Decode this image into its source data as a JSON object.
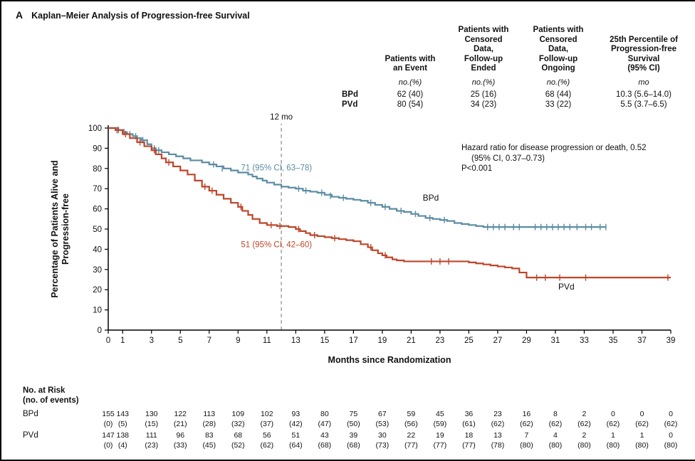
{
  "panel_label": "A",
  "title": "Kaplan–Meier Analysis of Progression-free Survival",
  "summary_table": {
    "col_headers": [
      "Patients with\nan Event",
      "Patients with\nCensored\nData,\nFollow-up\nEnded",
      "Patients with\nCensored\nData,\nFollow-up\nOngoing",
      "25th Percentile of\nProgression-free\nSurvival\n(95% CI)"
    ],
    "unit_row": [
      "no.(%)",
      "no.(%)",
      "no.(%)",
      "mo"
    ],
    "rows": [
      {
        "label": "BPd",
        "values": [
          "62 (40)",
          "25 (16)",
          "68 (44)",
          "10.3 (5.6–14.0)"
        ]
      },
      {
        "label": "PVd",
        "values": [
          "80 (54)",
          "34 (23)",
          "33 (22)",
          "5.5 (3.7–6.5)"
        ]
      }
    ]
  },
  "stats_note": [
    "Hazard ratio for disease progression or death, 0.52",
    "(95% CI, 0.37–0.73)",
    "P<0.001"
  ],
  "chart_data": {
    "type": "line",
    "subtype": "kaplan-meier-step",
    "title": "Kaplan–Meier Analysis of Progression-free Survival",
    "xlabel": "Months since Randomization",
    "ylabel": "Percentage of Patients Alive and\nProgression-free",
    "xlim": [
      0,
      39
    ],
    "ylim": [
      0,
      100
    ],
    "xticks": [
      0,
      1,
      3,
      5,
      7,
      9,
      11,
      13,
      15,
      17,
      19,
      21,
      23,
      25,
      27,
      29,
      31,
      33,
      35,
      37,
      39
    ],
    "yticks": [
      0,
      10,
      20,
      30,
      40,
      50,
      60,
      70,
      80,
      90,
      100
    ],
    "grid": false,
    "reference_line": {
      "x": 12,
      "label": "12 mo"
    },
    "series": [
      {
        "name": "BPd",
        "color": "#5b8ca3",
        "annotation": "71 (95% CI, 63–78)",
        "annotation_pos": {
          "x": 9.2,
          "y": 79
        },
        "label_pos": {
          "x": 21.8,
          "y": 64
        },
        "points": [
          [
            0,
            100
          ],
          [
            0.7,
            99
          ],
          [
            1,
            98
          ],
          [
            1.3,
            97
          ],
          [
            1.7,
            96
          ],
          [
            2,
            95
          ],
          [
            2.3,
            94
          ],
          [
            2.7,
            92
          ],
          [
            3,
            90
          ],
          [
            3.3,
            89
          ],
          [
            3.7,
            88
          ],
          [
            4.2,
            87
          ],
          [
            4.7,
            86
          ],
          [
            5.2,
            85
          ],
          [
            5.7,
            84
          ],
          [
            6.5,
            83
          ],
          [
            7,
            82
          ],
          [
            7.5,
            81
          ],
          [
            8,
            80
          ],
          [
            8.5,
            79
          ],
          [
            9,
            78
          ],
          [
            9.7,
            77
          ],
          [
            10,
            76
          ],
          [
            10.3,
            75
          ],
          [
            10.7,
            74
          ],
          [
            11,
            73
          ],
          [
            11.5,
            72
          ],
          [
            12,
            71
          ],
          [
            12.5,
            70.5
          ],
          [
            13,
            70
          ],
          [
            13.5,
            69
          ],
          [
            14,
            68.5
          ],
          [
            14.5,
            68
          ],
          [
            15,
            67
          ],
          [
            15.5,
            66
          ],
          [
            16,
            65.5
          ],
          [
            16.5,
            65
          ],
          [
            17,
            64.5
          ],
          [
            17.5,
            64
          ],
          [
            18,
            63
          ],
          [
            18.5,
            62
          ],
          [
            19,
            61
          ],
          [
            19.5,
            60
          ],
          [
            20,
            59
          ],
          [
            20.5,
            58.5
          ],
          [
            21,
            57.5
          ],
          [
            21.5,
            56.5
          ],
          [
            22,
            55.5
          ],
          [
            22.5,
            55
          ],
          [
            23,
            54.5
          ],
          [
            23.5,
            54
          ],
          [
            24,
            53
          ],
          [
            24.5,
            52.5
          ],
          [
            25,
            52
          ],
          [
            25.5,
            51.5
          ],
          [
            26,
            51
          ],
          [
            34.5,
            51
          ]
        ],
        "censors": [
          [
            0.6,
            99
          ],
          [
            1.1,
            98
          ],
          [
            1.5,
            97
          ],
          [
            1.9,
            96
          ],
          [
            2.4,
            94
          ],
          [
            3.2,
            90
          ],
          [
            3.5,
            89
          ],
          [
            7.3,
            82
          ],
          [
            7.9,
            80
          ],
          [
            13.2,
            70
          ],
          [
            13.7,
            69
          ],
          [
            14.8,
            68
          ],
          [
            15.4,
            66.5
          ],
          [
            16.3,
            65.5
          ],
          [
            18.2,
            63
          ],
          [
            19.2,
            61
          ],
          [
            20.3,
            59
          ],
          [
            21.3,
            57.5
          ],
          [
            22.3,
            55.5
          ],
          [
            23.3,
            54.5
          ],
          [
            26.3,
            51
          ],
          [
            26.7,
            51
          ],
          [
            27.1,
            51
          ],
          [
            27.5,
            51
          ],
          [
            28.1,
            51
          ],
          [
            28.5,
            51
          ],
          [
            29.6,
            51
          ],
          [
            30,
            51
          ],
          [
            30.4,
            51
          ],
          [
            30.8,
            51
          ],
          [
            31.2,
            51
          ],
          [
            31.6,
            51
          ],
          [
            32,
            51
          ],
          [
            32.5,
            51
          ],
          [
            33.1,
            51
          ],
          [
            33.5,
            51
          ],
          [
            34.1,
            51
          ],
          [
            34.5,
            51
          ]
        ]
      },
      {
        "name": "PVd",
        "color": "#bf4529",
        "annotation": "51 (95% CI, 42–60)",
        "annotation_pos": {
          "x": 9.2,
          "y": 41
        },
        "label_pos": {
          "x": 31.2,
          "y": 20
        },
        "points": [
          [
            0,
            100
          ],
          [
            0.5,
            99
          ],
          [
            1,
            97
          ],
          [
            1.5,
            95
          ],
          [
            2,
            93
          ],
          [
            2.5,
            91
          ],
          [
            3,
            89
          ],
          [
            3.3,
            87
          ],
          [
            3.7,
            85
          ],
          [
            4,
            83
          ],
          [
            4.5,
            81
          ],
          [
            5,
            79
          ],
          [
            5.5,
            77
          ],
          [
            6,
            74
          ],
          [
            6.5,
            71
          ],
          [
            7,
            69
          ],
          [
            7.5,
            67
          ],
          [
            8,
            65
          ],
          [
            8.5,
            63
          ],
          [
            9,
            61
          ],
          [
            9.3,
            59
          ],
          [
            9.7,
            57
          ],
          [
            10,
            55
          ],
          [
            10.5,
            53
          ],
          [
            11,
            52
          ],
          [
            11.7,
            51.5
          ],
          [
            12.5,
            51
          ],
          [
            13,
            50
          ],
          [
            13.3,
            49
          ],
          [
            13.7,
            48
          ],
          [
            14,
            47
          ],
          [
            14.5,
            46.5
          ],
          [
            15,
            46
          ],
          [
            15.5,
            45.5
          ],
          [
            16,
            45
          ],
          [
            16.5,
            44.5
          ],
          [
            17,
            44
          ],
          [
            17.5,
            42.5
          ],
          [
            18,
            41
          ],
          [
            18.3,
            39.5
          ],
          [
            18.7,
            38
          ],
          [
            19,
            37
          ],
          [
            19.3,
            36
          ],
          [
            19.7,
            35
          ],
          [
            20,
            34.5
          ],
          [
            20.5,
            34
          ],
          [
            25,
            33.5
          ],
          [
            25.5,
            33
          ],
          [
            26,
            32.5
          ],
          [
            26.5,
            32
          ],
          [
            27,
            31.5
          ],
          [
            27.5,
            31
          ],
          [
            28,
            30.5
          ],
          [
            28.5,
            28.5
          ],
          [
            29,
            26
          ],
          [
            39,
            26
          ]
        ],
        "censors": [
          [
            0.7,
            99
          ],
          [
            1.2,
            97
          ],
          [
            2.2,
            93
          ],
          [
            3.2,
            89
          ],
          [
            4.2,
            83
          ],
          [
            6.7,
            71
          ],
          [
            7.2,
            69
          ],
          [
            9.2,
            61
          ],
          [
            11.3,
            52
          ],
          [
            11.9,
            51.5
          ],
          [
            13.2,
            50
          ],
          [
            14.3,
            47
          ],
          [
            15.7,
            45.5
          ],
          [
            18.2,
            41
          ],
          [
            19.2,
            37
          ],
          [
            22.4,
            34
          ],
          [
            23,
            34
          ],
          [
            23.6,
            34
          ],
          [
            29.7,
            26
          ],
          [
            30.3,
            26
          ],
          [
            31.3,
            26
          ],
          [
            33.1,
            26
          ],
          [
            38.8,
            26
          ]
        ]
      }
    ]
  },
  "risk_table": {
    "header_line1": "No. at Risk",
    "header_line2": "(no. of events)",
    "rows": [
      {
        "label": "BPd",
        "at_risk": [
          "155",
          "143",
          "130",
          "122",
          "113",
          "109",
          "102",
          "93",
          "80",
          "75",
          "67",
          "59",
          "45",
          "36",
          "23",
          "16",
          "8",
          "2",
          "0",
          "0",
          "0"
        ],
        "events": [
          "(0)",
          "(5)",
          "(15)",
          "(21)",
          "(28)",
          "(32)",
          "(37)",
          "(42)",
          "(47)",
          "(50)",
          "(53)",
          "(56)",
          "(59)",
          "(61)",
          "(62)",
          "(62)",
          "(62)",
          "(62)",
          "(62)",
          "(62)",
          "(62)"
        ]
      },
      {
        "label": "PVd",
        "at_risk": [
          "147",
          "138",
          "111",
          "96",
          "83",
          "68",
          "56",
          "51",
          "43",
          "39",
          "30",
          "22",
          "19",
          "18",
          "13",
          "7",
          "4",
          "2",
          "1",
          "1",
          "0"
        ],
        "events": [
          "(0)",
          "(4)",
          "(23)",
          "(33)",
          "(45)",
          "(52)",
          "(62)",
          "(64)",
          "(68)",
          "(68)",
          "(73)",
          "(77)",
          "(77)",
          "(77)",
          "(78)",
          "(80)",
          "(80)",
          "(80)",
          "(80)",
          "(80)",
          "(80)"
        ]
      }
    ]
  }
}
